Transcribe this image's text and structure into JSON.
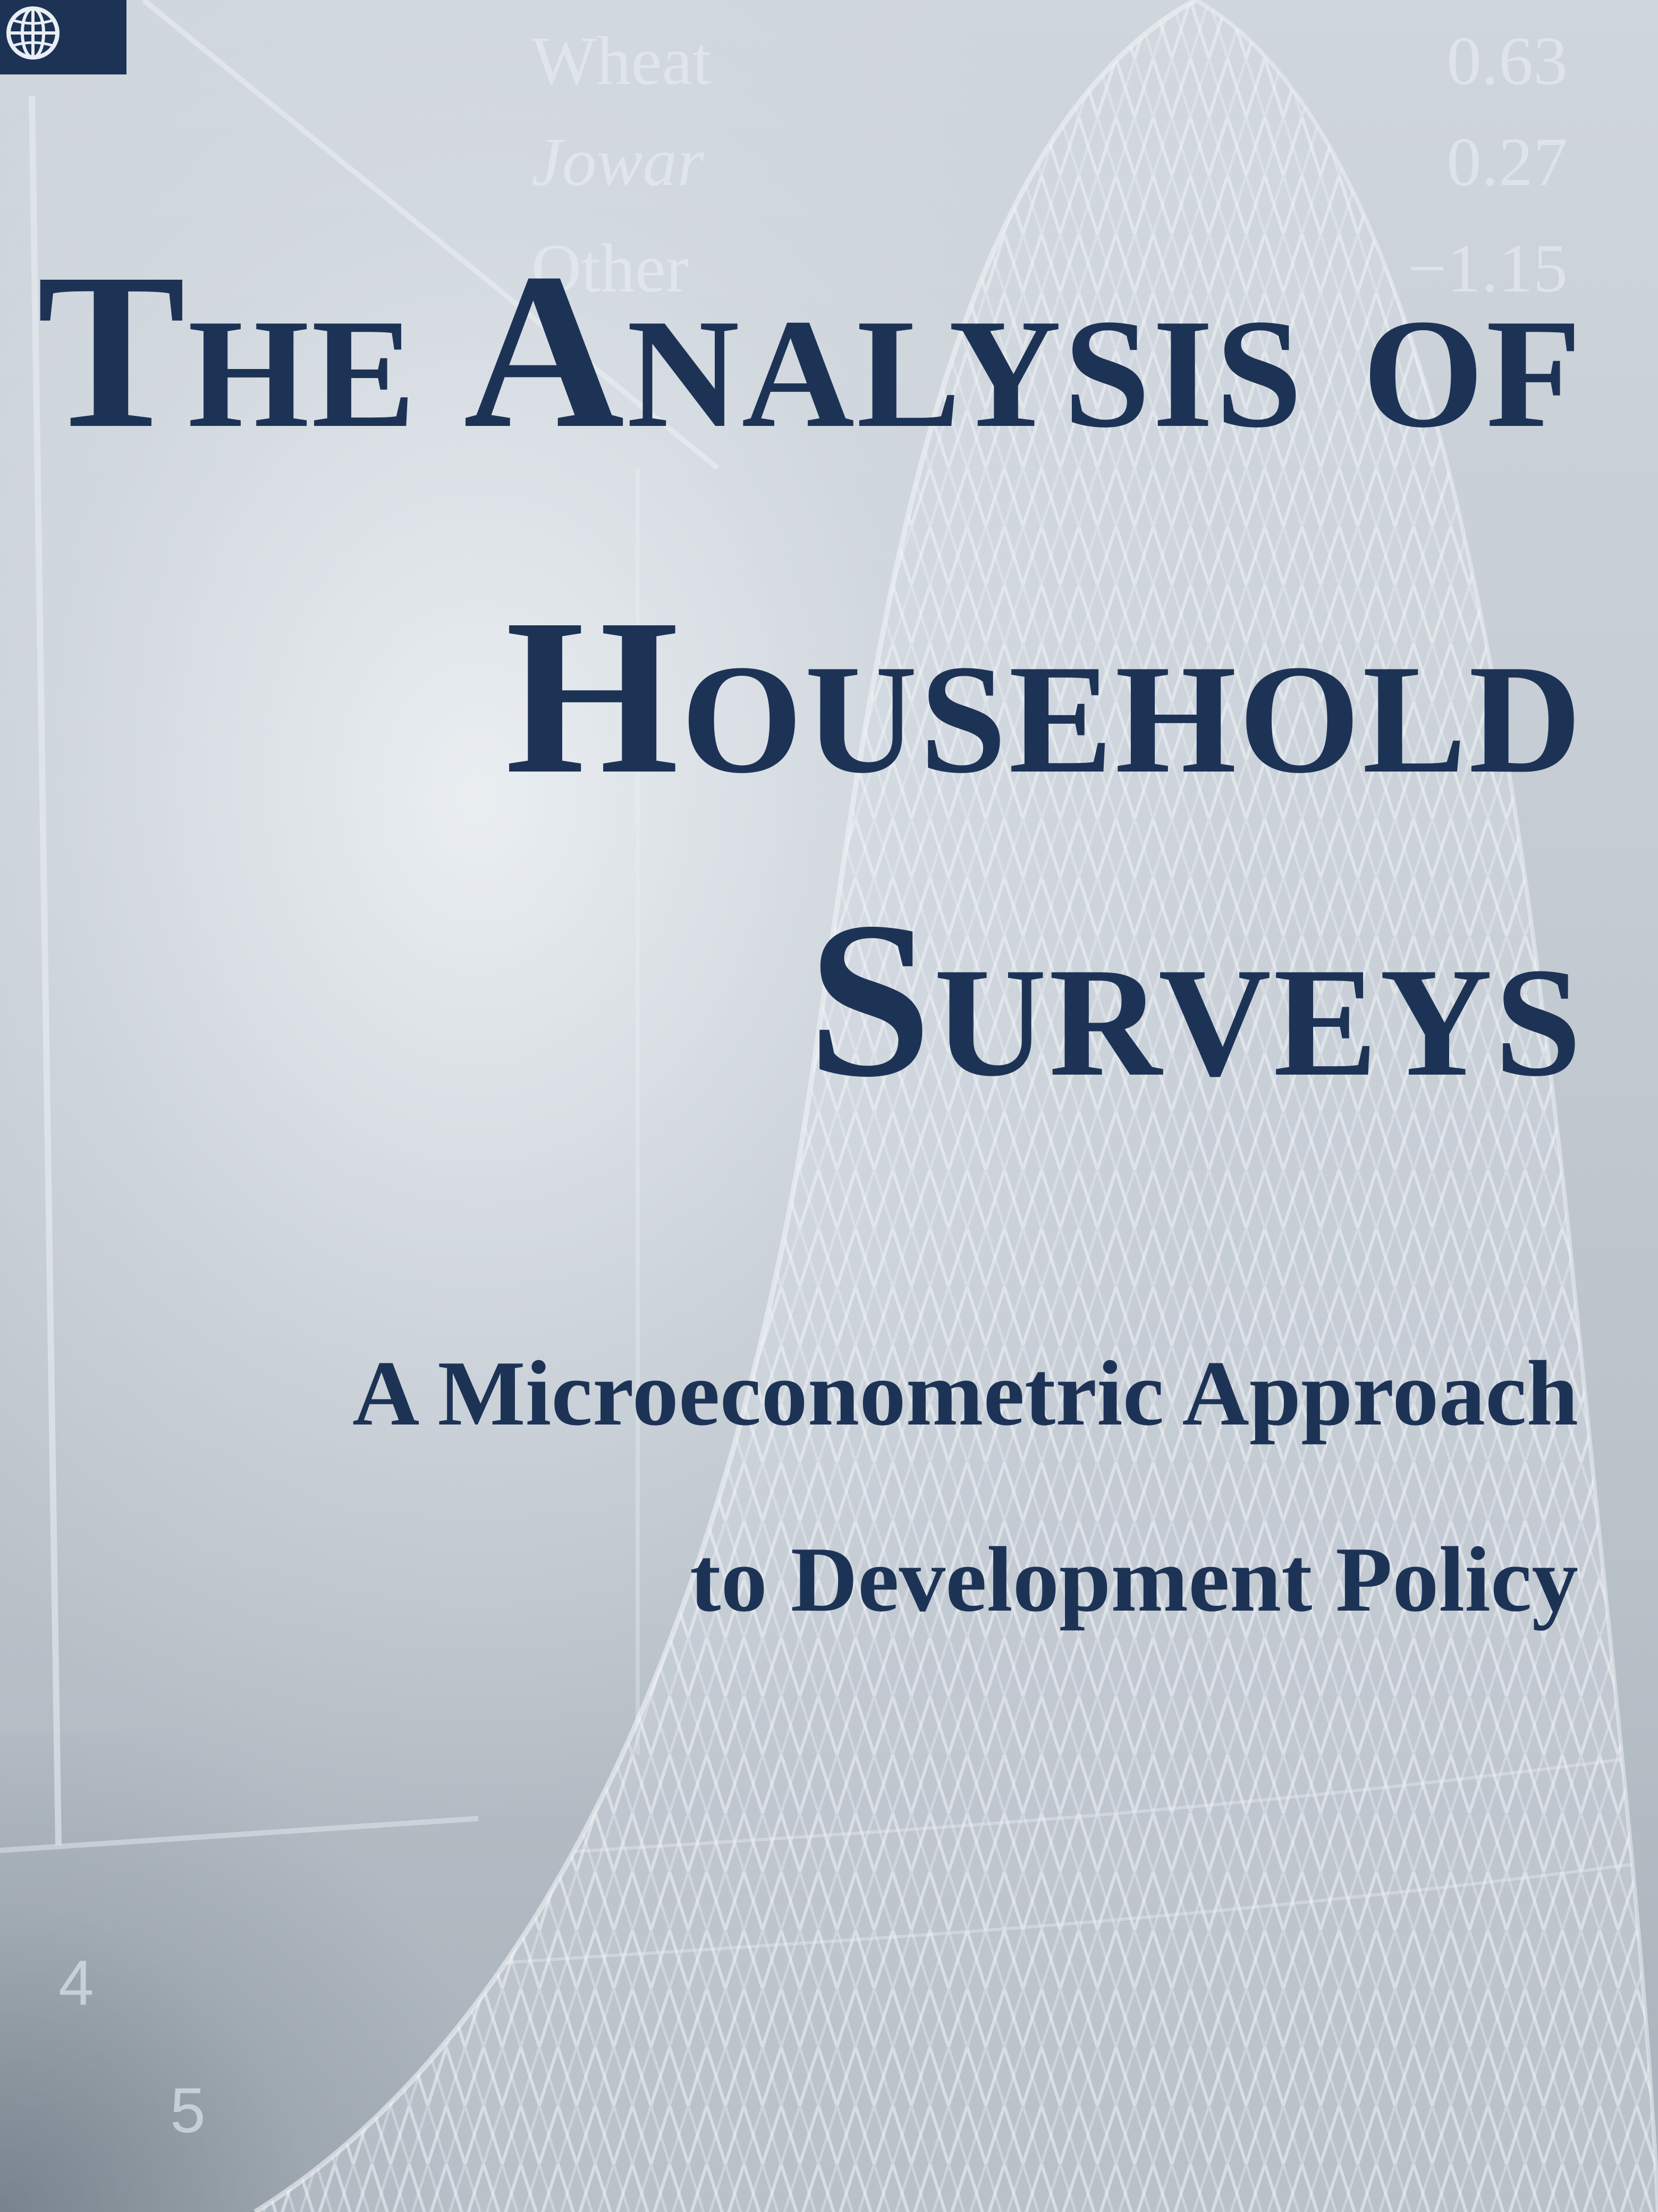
{
  "cover": {
    "title_line1": "The Analysis of",
    "title_line2": "Household",
    "title_line3": "Surveys",
    "subtitle_line1": "A Microeconometric Approach",
    "subtitle_line2": "to Development Policy"
  },
  "background_table": {
    "rows": [
      {
        "crop": "Wheat",
        "value": "0.63"
      },
      {
        "crop": "Jowar",
        "value": "0.27"
      },
      {
        "crop": "Other",
        "value": "−1.15"
      }
    ]
  },
  "axis_numbers": [
    "4",
    "5"
  ],
  "logo": {
    "icon": "globe-icon"
  },
  "colors": {
    "title_text": "#1d3356",
    "background": "#c9d0d6",
    "logo_box": "#1d3356"
  }
}
